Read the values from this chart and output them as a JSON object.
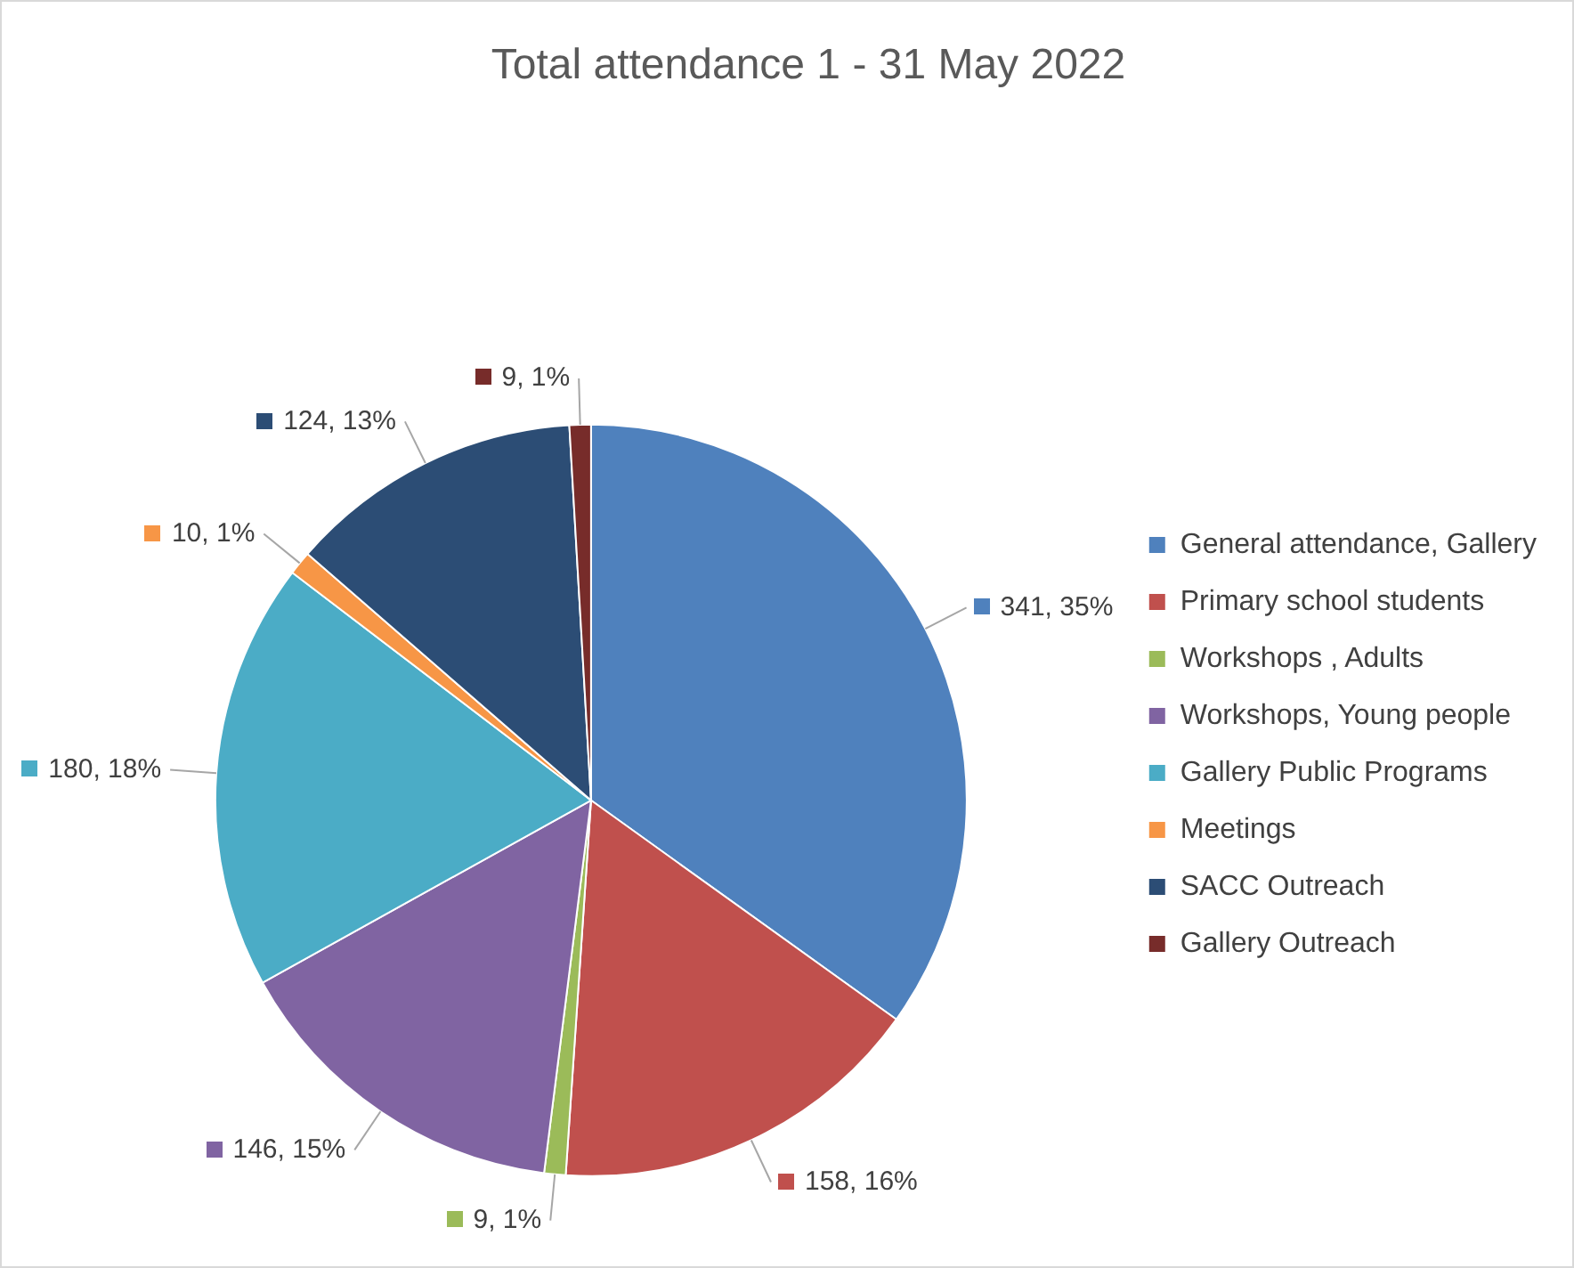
{
  "chart_data": {
    "type": "pie",
    "title": "Total attendance 1 - 31 May 2022",
    "categories": [
      "General attendance, Gallery",
      "Primary school students",
      "Workshops , Adults",
      "Workshops, Young people",
      "Gallery Public Programs",
      "Meetings",
      "SACC Outreach",
      "Gallery Outreach"
    ],
    "values": [
      341,
      158,
      9,
      146,
      180,
      10,
      124,
      9
    ],
    "colors": [
      "#4f81bd",
      "#c0504d",
      "#9bbb59",
      "#8064a2",
      "#4bacc6",
      "#f79646",
      "#2c4d75",
      "#772c2a"
    ],
    "value_labels": [
      "341, 35%",
      "158, 16%",
      "9, 1%",
      "146, 15%",
      "180, 18%",
      "10, 1%",
      "124, 13%",
      "9, 1%"
    ],
    "legend": "right"
  }
}
